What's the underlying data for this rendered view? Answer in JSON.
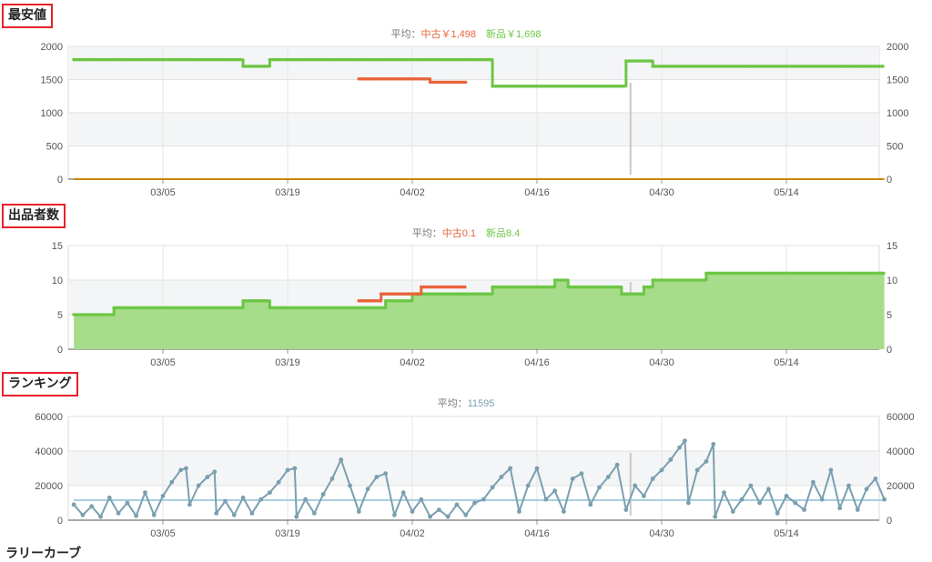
{
  "sections": {
    "price_title": "最安値",
    "sellers_title": "出品者数",
    "ranking_title": "ランキング",
    "next_title": "ラリーカーブ"
  },
  "chart_data": [
    {
      "id": "price",
      "type": "line",
      "title": "最安値",
      "subtitle": {
        "prefix": "平均：",
        "items": [
          {
            "label": "中古￥1,498",
            "color": "#e8643a"
          },
          {
            "label": "新品￥1,698",
            "color": "#6cc644"
          }
        ]
      },
      "x_ticks": [
        "03/05",
        "03/19",
        "04/02",
        "04/16",
        "04/30",
        "05/14"
      ],
      "y_ticks": [
        0,
        500,
        1000,
        1500,
        2000
      ],
      "ylim": [
        0,
        2000
      ],
      "xlim_days": [
        0,
        91
      ],
      "series": [
        {
          "name": "新品",
          "color": "#6cc644",
          "points": [
            [
              0,
              1800
            ],
            [
              19,
              1800
            ],
            [
              19,
              1700
            ],
            [
              22,
              1700
            ],
            [
              22,
              1800
            ],
            [
              47,
              1800
            ],
            [
              47,
              1400
            ],
            [
              62,
              1400
            ],
            [
              62,
              1780
            ],
            [
              65,
              1780
            ],
            [
              65,
              1700
            ],
            [
              91,
              1700
            ]
          ]
        },
        {
          "name": "中古",
          "color": "#e8643a",
          "points": [
            [
              32,
              1510
            ],
            [
              40,
              1510
            ],
            [
              40,
              1460
            ],
            [
              44,
              1460
            ]
          ]
        },
        {
          "name": "base",
          "color": "#c8860a",
          "points": [
            [
              0,
              0
            ],
            [
              91,
              0
            ]
          ]
        }
      ],
      "grid": true
    },
    {
      "id": "sellers",
      "type": "area",
      "title": "出品者数",
      "subtitle": {
        "prefix": "平均：",
        "items": [
          {
            "label": "中古0.1",
            "color": "#e8643a"
          },
          {
            "label": "新品8.4",
            "color": "#6cc644"
          }
        ]
      },
      "x_ticks": [
        "03/05",
        "03/19",
        "04/02",
        "04/16",
        "04/30",
        "05/14"
      ],
      "y_ticks": [
        0,
        5,
        10,
        15
      ],
      "ylim": [
        0,
        15
      ],
      "xlim_days": [
        0,
        91
      ],
      "series": [
        {
          "name": "新品",
          "color": "#6cc644",
          "fill": "#a7dc8a",
          "points": [
            [
              0,
              5
            ],
            [
              4.5,
              5
            ],
            [
              4.5,
              6
            ],
            [
              19,
              6
            ],
            [
              19,
              7
            ],
            [
              22,
              7
            ],
            [
              22,
              6
            ],
            [
              35,
              6
            ],
            [
              35,
              7
            ],
            [
              38,
              7
            ],
            [
              38,
              8
            ],
            [
              47,
              8
            ],
            [
              47,
              9
            ],
            [
              54,
              9
            ],
            [
              54,
              10
            ],
            [
              55.5,
              10
            ],
            [
              55.5,
              9
            ],
            [
              61.5,
              9
            ],
            [
              61.5,
              8
            ],
            [
              64,
              8
            ],
            [
              64,
              9
            ],
            [
              65,
              9
            ],
            [
              65,
              10
            ],
            [
              71,
              10
            ],
            [
              71,
              11
            ],
            [
              91,
              11
            ]
          ]
        },
        {
          "name": "中古",
          "color": "#e8643a",
          "points": [
            [
              32,
              7
            ],
            [
              34.5,
              7
            ],
            [
              34.5,
              8
            ],
            [
              39,
              8
            ],
            [
              39,
              9
            ],
            [
              44,
              9
            ]
          ]
        }
      ],
      "grid": true
    },
    {
      "id": "ranking",
      "type": "line",
      "title": "ランキング",
      "subtitle": {
        "prefix": "平均：",
        "items": [
          {
            "label": "11595",
            "color": "#7a9fb0"
          }
        ]
      },
      "x_ticks": [
        "03/05",
        "03/19",
        "04/02",
        "04/16",
        "04/30",
        "05/14"
      ],
      "y_ticks": [
        0,
        20000,
        40000,
        60000
      ],
      "ylim": [
        0,
        60000
      ],
      "xlim_days": [
        0,
        91
      ],
      "average": 11595,
      "series": [
        {
          "name": "ランキング",
          "color": "#7a9fb0",
          "points": [
            [
              0,
              9000
            ],
            [
              1,
              3000
            ],
            [
              2,
              8000
            ],
            [
              3,
              2000
            ],
            [
              4,
              13000
            ],
            [
              5,
              4000
            ],
            [
              6,
              10000
            ],
            [
              7,
              2500
            ],
            [
              8,
              16000
            ],
            [
              9,
              3000
            ],
            [
              10,
              14000
            ],
            [
              11,
              22000
            ],
            [
              12,
              29000
            ],
            [
              12.6,
              30000
            ],
            [
              13,
              9000
            ],
            [
              14,
              20000
            ],
            [
              15,
              25000
            ],
            [
              15.8,
              28000
            ],
            [
              16,
              4000
            ],
            [
              17,
              11000
            ],
            [
              18,
              3000
            ],
            [
              19,
              13000
            ],
            [
              20,
              4000
            ],
            [
              21,
              12000
            ],
            [
              22,
              16000
            ],
            [
              23,
              22000
            ],
            [
              24,
              29000
            ],
            [
              24.8,
              30000
            ],
            [
              25,
              2000
            ],
            [
              26,
              12000
            ],
            [
              27,
              4000
            ],
            [
              28,
              15000
            ],
            [
              29,
              24000
            ],
            [
              30,
              35000
            ],
            [
              31,
              20000
            ],
            [
              32,
              5000
            ],
            [
              33,
              18000
            ],
            [
              34,
              25000
            ],
            [
              35,
              27000
            ],
            [
              36,
              3000
            ],
            [
              37,
              16000
            ],
            [
              38,
              5000
            ],
            [
              39,
              12000
            ],
            [
              40,
              2000
            ],
            [
              41,
              6000
            ],
            [
              42,
              2000
            ],
            [
              43,
              9000
            ],
            [
              44,
              3000
            ],
            [
              45,
              10000
            ],
            [
              46,
              12000
            ],
            [
              47,
              19000
            ],
            [
              48,
              25000
            ],
            [
              49,
              30000
            ],
            [
              50,
              5000
            ],
            [
              51,
              20000
            ],
            [
              52,
              30000
            ],
            [
              53,
              12000
            ],
            [
              54,
              17000
            ],
            [
              55,
              5000
            ],
            [
              56,
              24000
            ],
            [
              57,
              27000
            ],
            [
              58,
              9000
            ],
            [
              59,
              19000
            ],
            [
              60,
              25000
            ],
            [
              61,
              32000
            ],
            [
              62,
              6000
            ],
            [
              63,
              20000
            ],
            [
              64,
              14000
            ],
            [
              65,
              24000
            ],
            [
              66,
              29000
            ],
            [
              67,
              35000
            ],
            [
              68,
              42000
            ],
            [
              68.6,
              46000
            ],
            [
              69,
              10000
            ],
            [
              70,
              29000
            ],
            [
              71,
              34000
            ],
            [
              71.8,
              44000
            ],
            [
              72,
              2000
            ],
            [
              73,
              16000
            ],
            [
              74,
              5000
            ],
            [
              75,
              12000
            ],
            [
              76,
              20000
            ],
            [
              77,
              10000
            ],
            [
              78,
              18000
            ],
            [
              79,
              4000
            ],
            [
              80,
              14000
            ],
            [
              81,
              10000
            ],
            [
              82,
              6000
            ],
            [
              83,
              22000
            ],
            [
              84,
              12000
            ],
            [
              85,
              29000
            ],
            [
              86,
              7000
            ],
            [
              87,
              20000
            ],
            [
              88,
              6000
            ],
            [
              89,
              18000
            ],
            [
              90,
              24000
            ],
            [
              91,
              12000
            ]
          ]
        }
      ],
      "grid": true
    }
  ]
}
